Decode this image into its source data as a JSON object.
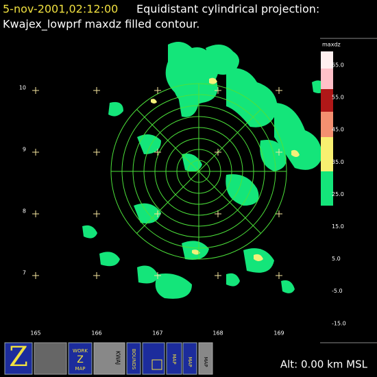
{
  "header": {
    "timestamp": "5-nov-2001,02:12:00",
    "title": "Equidistant cylindrical projection:",
    "subtitle": "Kwajex_lowprf maxdz filled contour."
  },
  "map": {
    "lat_labels": [
      "10",
      "9",
      "8",
      "7"
    ],
    "lon_labels": [
      "165",
      "166",
      "167",
      "168",
      "169"
    ]
  },
  "colorbar": {
    "label": "maxdz",
    "ticks": [
      "65.0",
      "55.0",
      "45.0",
      "35.0",
      "25.0",
      "15.0",
      "5.0",
      "-5.0",
      "-15.0"
    ]
  },
  "toolbar": {
    "work_button": [
      "WORK",
      "Z",
      "MAP"
    ],
    "kwaj": "KWAJ",
    "bounds": "BOUNDS",
    "map_buttons": [
      "MAP",
      "MAP",
      "MAP"
    ]
  },
  "status": "Alt: 0.00 km MSL"
}
